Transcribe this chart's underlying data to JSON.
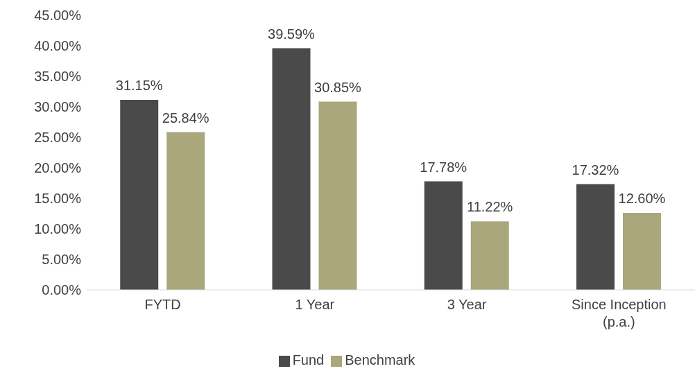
{
  "chart_data": {
    "type": "bar",
    "categories": [
      "FYTD",
      "1 Year",
      "3 Year",
      "Since Inception (p.a.)"
    ],
    "series": [
      {
        "name": "Fund",
        "color": "#4a4a4a",
        "values": [
          31.15,
          39.59,
          17.78,
          17.32
        ],
        "value_labels": [
          "31.15%",
          "39.59%",
          "17.78%",
          "17.32%"
        ]
      },
      {
        "name": "Benchmark",
        "color": "#a9a77b",
        "values": [
          25.84,
          30.85,
          11.22,
          12.6
        ],
        "value_labels": [
          "25.84%",
          "30.85%",
          "11.22%",
          "12.60%"
        ]
      }
    ],
    "ylim": [
      0,
      45
    ],
    "yticks": [
      {
        "value": 0,
        "label": "0.00%"
      },
      {
        "value": 5,
        "label": "5.00%"
      },
      {
        "value": 10,
        "label": "10.00%"
      },
      {
        "value": 15,
        "label": "15.00%"
      },
      {
        "value": 20,
        "label": "20.00%"
      },
      {
        "value": 25,
        "label": "25.00%"
      },
      {
        "value": 30,
        "label": "30.00%"
      },
      {
        "value": 35,
        "label": "35.00%"
      },
      {
        "value": 40,
        "label": "40.00%"
      },
      {
        "value": 45,
        "label": "45.00%"
      }
    ],
    "grid": false,
    "legend": "bottom"
  }
}
